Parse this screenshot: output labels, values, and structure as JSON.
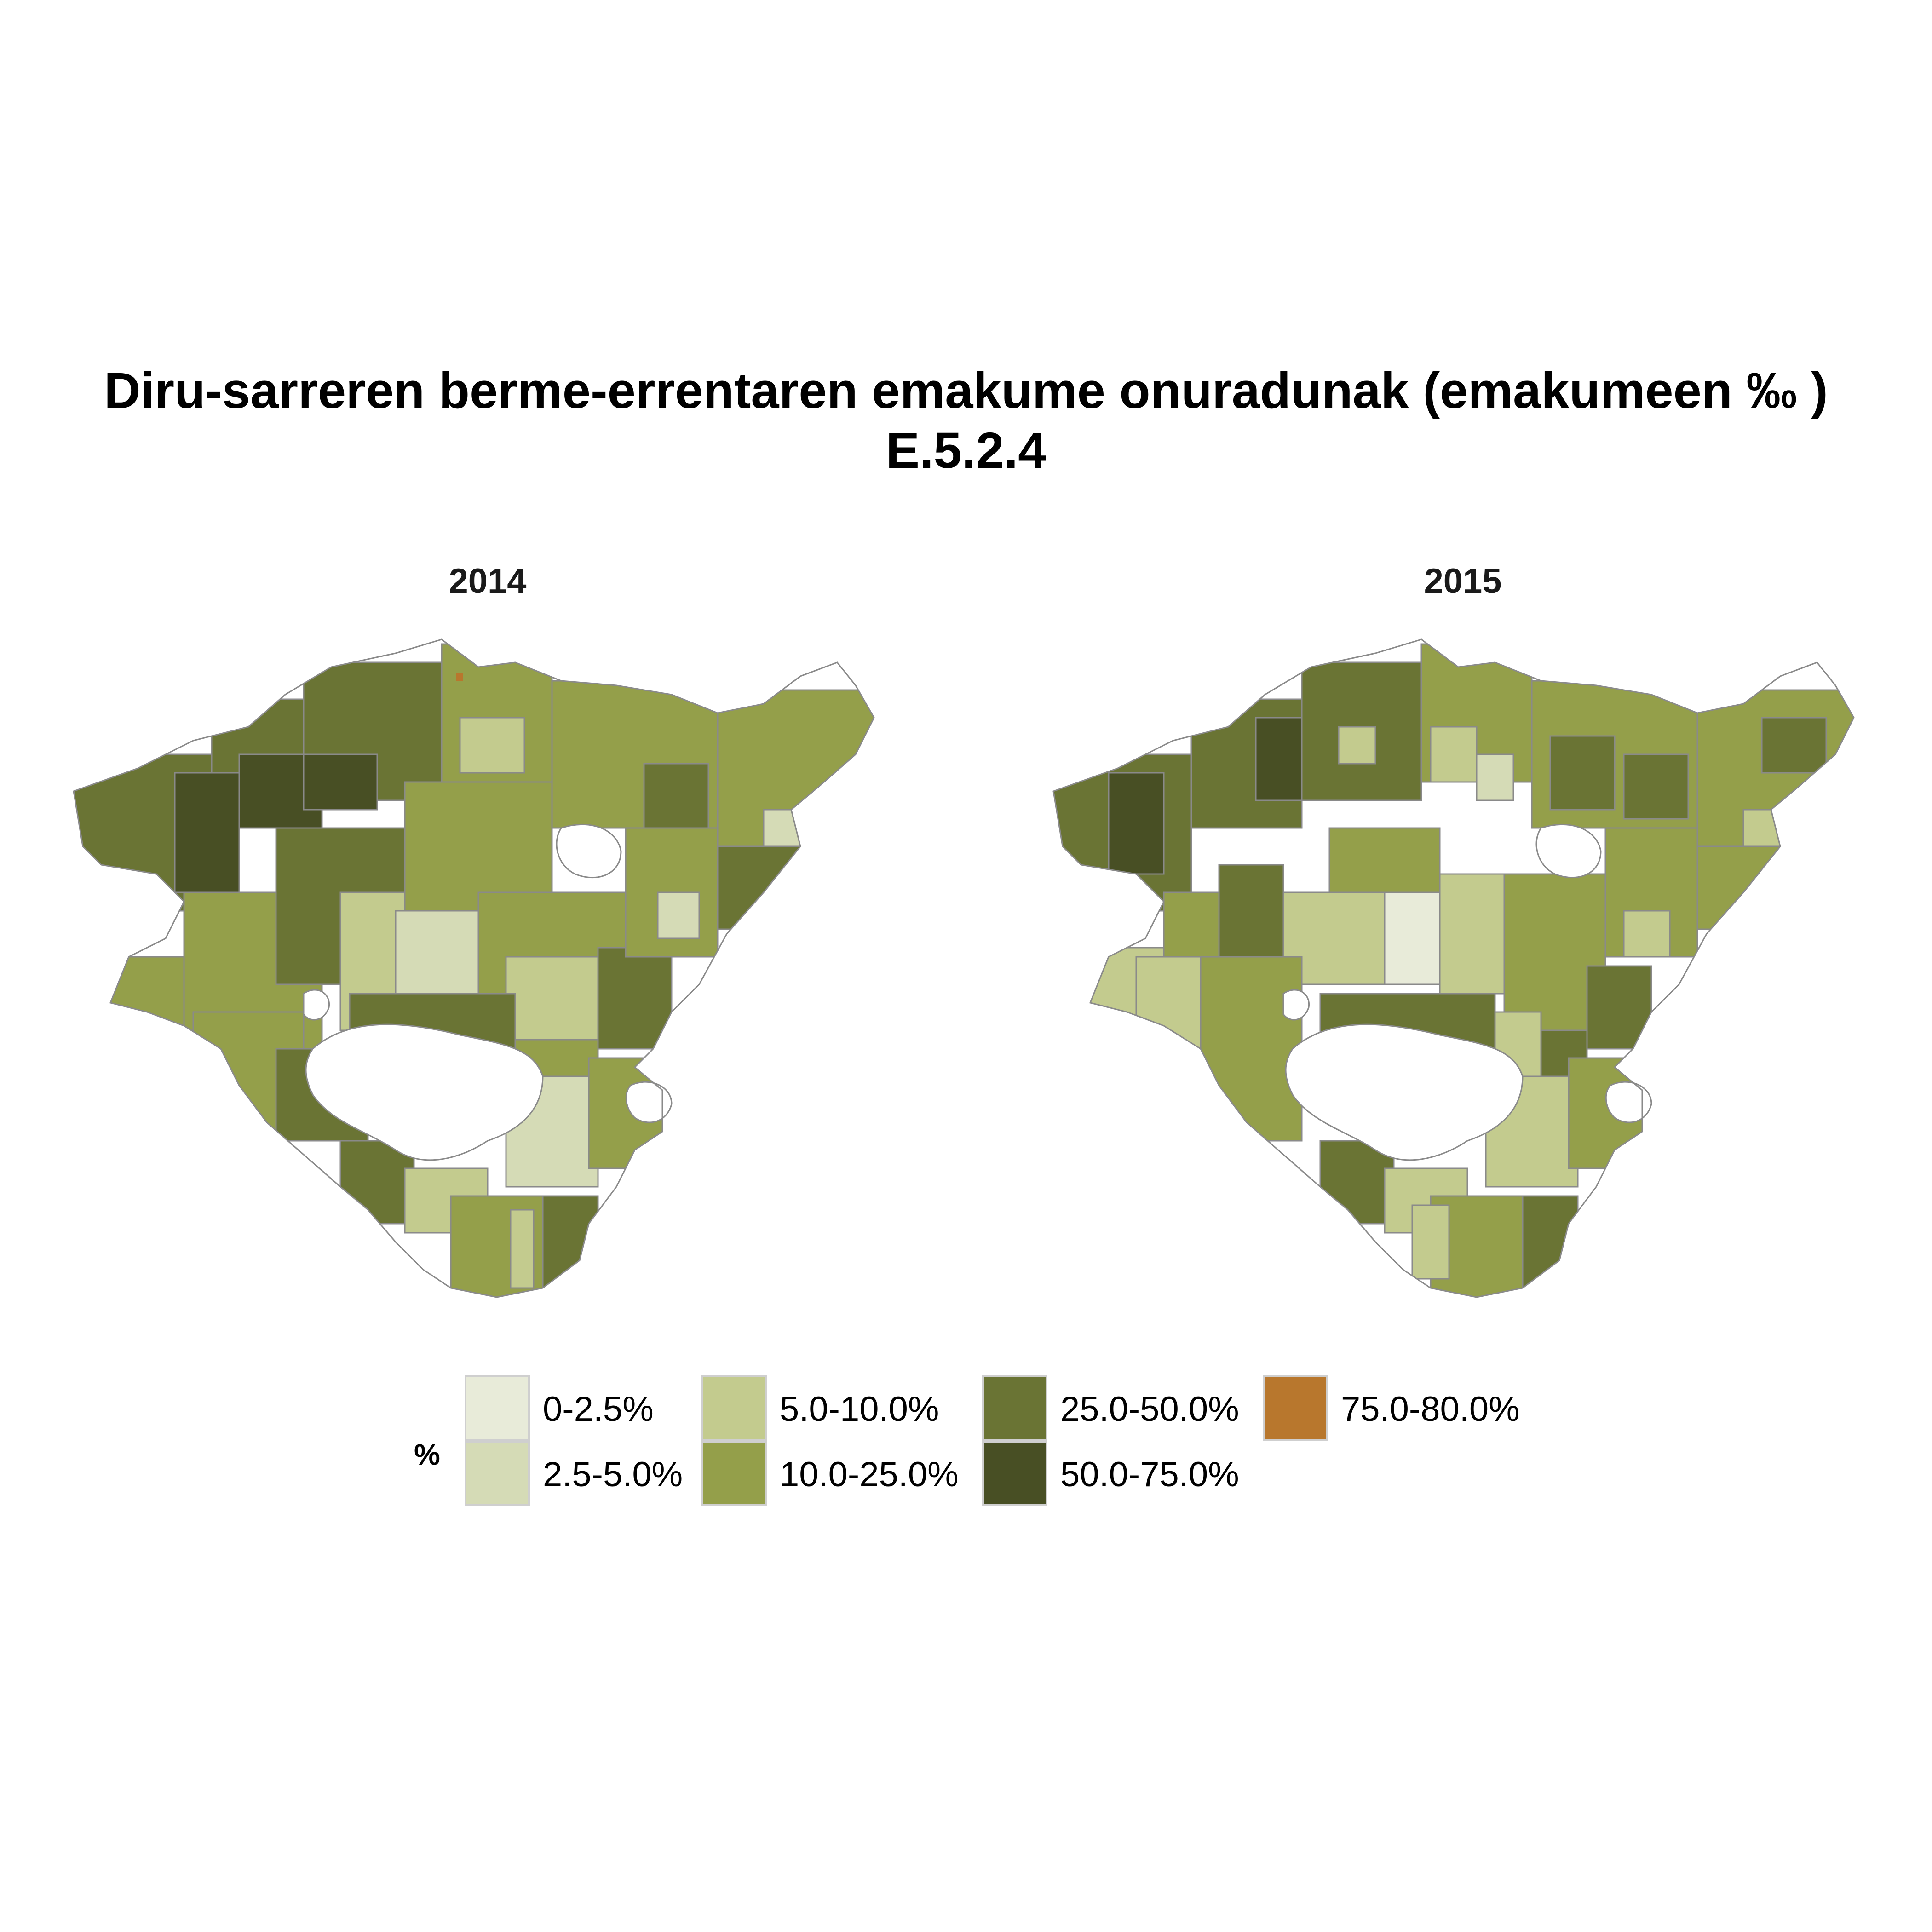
{
  "title": {
    "line1": "Diru-sarreren berme-errentaren emakume onuradunak (emakumeen ‰ )",
    "line2": "E.5.2.4"
  },
  "panels": [
    {
      "label": "2014"
    },
    {
      "label": "2015"
    }
  ],
  "legend": {
    "title": "%",
    "items": [
      {
        "label": "0-2.5%",
        "color": "#e8ebd9"
      },
      {
        "label": "2.5-5.0%",
        "color": "#d5dbb6"
      },
      {
        "label": "5.0-10.0%",
        "color": "#c3cb8e"
      },
      {
        "label": "10.0-25.0%",
        "color": "#949f4a"
      },
      {
        "label": "25.0-50.0%",
        "color": "#6a7434"
      },
      {
        "label": "50.0-75.0%",
        "color": "#484f24"
      },
      {
        "label": "75.0-80.0%",
        "color": "#b8772d"
      }
    ]
  },
  "colors": {
    "boundary": "#8a8a8a",
    "background": "#ffffff"
  }
}
